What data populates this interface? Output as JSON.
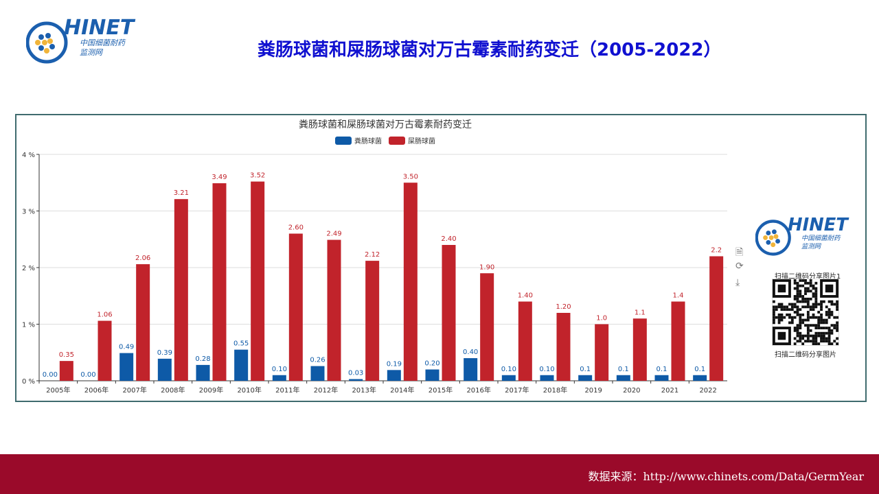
{
  "header": {
    "title": "粪肠球菌和屎肠球菌对万古霉素耐药变迁（2005-2022）",
    "logo_text": "CHINET",
    "logo_sub1": "中国细菌耐药",
    "logo_sub2": "监测网"
  },
  "side": {
    "qr_title": "扫描二维码分享图片1",
    "qr_caption": "扫描二维码分享图片"
  },
  "footer": {
    "source": "数据来源：http://www.chinets.com/Data/GermYear"
  },
  "colors": {
    "faecalis": "#0e5aa7",
    "faecium": "#c1232b",
    "title": "#1010d0",
    "footer": "#9a0a2a"
  },
  "chart_data": {
    "type": "bar",
    "title": "粪肠球菌和屎肠球菌对万古霉素耐药变迁",
    "categories": [
      "2005年",
      "2006年",
      "2007年",
      "2008年",
      "2009年",
      "2010年",
      "2011年",
      "2012年",
      "2013年",
      "2014年",
      "2015年",
      "2016年",
      "2017年",
      "2018年",
      "2019",
      "2020",
      "2021",
      "2022"
    ],
    "series": [
      {
        "name": "粪肠球菌",
        "values": [
          0.0,
          0.0,
          0.49,
          0.39,
          0.28,
          0.55,
          0.1,
          0.26,
          0.03,
          0.19,
          0.2,
          0.4,
          0.1,
          0.1,
          0.1,
          0.1,
          0.1,
          0.1
        ],
        "labels": [
          "0.00",
          "0.00",
          "0.49",
          "0.39",
          "0.28",
          "0.55",
          "0.10",
          "0.26",
          "0.03",
          "0.19",
          "0.20",
          "0.40",
          "0.10",
          "0.10",
          "0.1",
          "0.1",
          "0.1",
          "0.1"
        ]
      },
      {
        "name": "屎肠球菌",
        "values": [
          0.35,
          1.06,
          2.06,
          3.21,
          3.49,
          3.52,
          2.6,
          2.49,
          2.12,
          3.5,
          2.4,
          1.9,
          1.4,
          1.2,
          1.0,
          1.1,
          1.4,
          2.2
        ],
        "labels": [
          "0.35",
          "1.06",
          "2.06",
          "3.21",
          "3.49",
          "3.52",
          "2.60",
          "2.49",
          "2.12",
          "3.50",
          "2.40",
          "1.90",
          "1.40",
          "1.20",
          "1.0",
          "1.1",
          "1.4",
          "2.2"
        ]
      }
    ],
    "yticks": [
      "0 %",
      "1 %",
      "2 %",
      "3 %",
      "4 %"
    ],
    "ylim": [
      0,
      4
    ],
    "legend": "top-center",
    "grid": true
  }
}
